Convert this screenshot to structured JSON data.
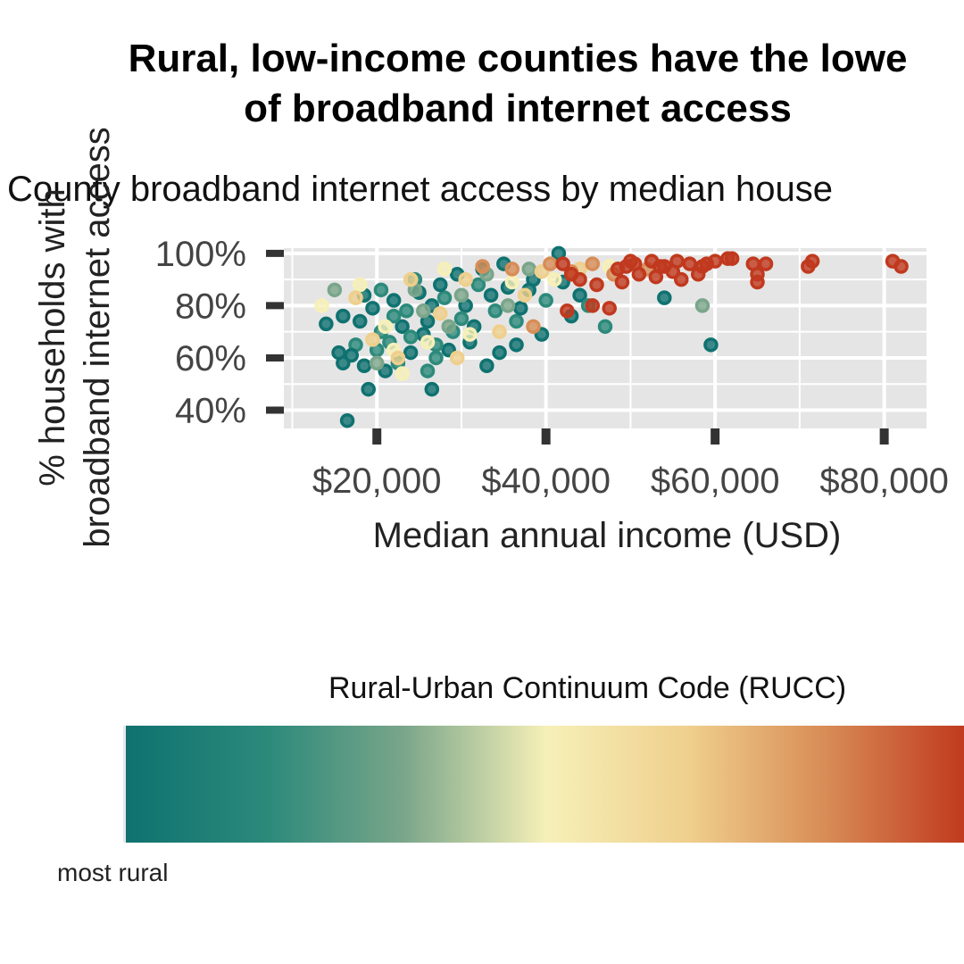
{
  "chart_data": {
    "type": "scatter",
    "title_line1": "Rural, low-income counties have the lowe",
    "title_line2": "of broadband internet access",
    "subtitle": "County broadband internet access by median house",
    "xlabel": "Median annual income (USD)",
    "ylabel_line1": "% households with",
    "ylabel_line2": "broadband internet access",
    "xlim": [
      9000,
      85000
    ],
    "ylim": [
      33,
      102
    ],
    "x_ticks": [
      20000,
      40000,
      60000,
      80000
    ],
    "x_tick_labels": [
      "$20,000",
      "$40,000",
      "$60,000",
      "$80,000"
    ],
    "y_ticks": [
      40,
      60,
      80,
      100
    ],
    "y_tick_labels": [
      "40%",
      "60%",
      "80%",
      "100%"
    ],
    "grid": true,
    "panel_background": "#e5e5e5",
    "grid_color": "#ffffff",
    "legend": {
      "title": "Rural-Urban Continuum Code (RUCC)",
      "low_label": "most rural",
      "placement": "bottom",
      "colors": [
        "#0f7270",
        "#2c8a7b",
        "#7aa58a",
        "#f6f0b8",
        "#efcf8c",
        "#d88d57",
        "#c0391e"
      ]
    },
    "series": [
      {
        "points": [
          [
            16500,
            36,
            1
          ],
          [
            19000,
            48,
            1
          ],
          [
            26500,
            48,
            1
          ],
          [
            16000,
            58,
            1
          ],
          [
            18500,
            57,
            1
          ],
          [
            15500,
            62,
            1
          ],
          [
            17500,
            65,
            2
          ],
          [
            21000,
            55,
            1
          ],
          [
            24000,
            62,
            1
          ],
          [
            27000,
            60,
            2
          ],
          [
            33000,
            57,
            1
          ],
          [
            34500,
            62,
            1
          ],
          [
            36500,
            65,
            1
          ],
          [
            31000,
            66,
            1
          ],
          [
            29000,
            70,
            2
          ],
          [
            26000,
            74,
            1
          ],
          [
            23000,
            72,
            1
          ],
          [
            20500,
            70,
            2
          ],
          [
            18000,
            74,
            1
          ],
          [
            16000,
            76,
            1
          ],
          [
            14000,
            73,
            1
          ],
          [
            22000,
            82,
            1
          ],
          [
            25000,
            85,
            1
          ],
          [
            28000,
            83,
            2
          ],
          [
            30500,
            80,
            1
          ],
          [
            33500,
            84,
            1
          ],
          [
            35500,
            87,
            1
          ],
          [
            38000,
            86,
            1
          ],
          [
            40000,
            82,
            2
          ],
          [
            42000,
            89,
            1
          ],
          [
            44000,
            84,
            1
          ],
          [
            27500,
            88,
            1
          ],
          [
            24500,
            90,
            2
          ],
          [
            29500,
            92,
            1
          ],
          [
            32500,
            94,
            1
          ],
          [
            35000,
            96,
            1
          ],
          [
            41500,
            100,
            1
          ],
          [
            38500,
            90,
            1
          ],
          [
            36500,
            74,
            2
          ],
          [
            39500,
            69,
            1
          ],
          [
            21500,
            66,
            2
          ],
          [
            19500,
            79,
            1
          ],
          [
            23500,
            78,
            2
          ],
          [
            25500,
            69,
            1
          ],
          [
            30000,
            75,
            2
          ],
          [
            37000,
            79,
            1
          ],
          [
            54000,
            83,
            1
          ],
          [
            59500,
            65,
            1
          ],
          [
            17000,
            61,
            1
          ],
          [
            20000,
            63,
            2
          ],
          [
            22500,
            58,
            2
          ],
          [
            26000,
            55,
            2
          ],
          [
            28500,
            63,
            1
          ],
          [
            31500,
            72,
            1
          ],
          [
            34000,
            78,
            2
          ],
          [
            47000,
            72,
            2
          ],
          [
            45000,
            80,
            2
          ],
          [
            43000,
            76,
            1
          ],
          [
            32000,
            88,
            2
          ],
          [
            26500,
            80,
            1
          ],
          [
            20500,
            86,
            2
          ],
          [
            18500,
            84,
            1
          ],
          [
            22000,
            76,
            2
          ],
          [
            24000,
            68,
            2
          ],
          [
            27000,
            65,
            2
          ],
          [
            58500,
            80,
            3
          ],
          [
            15000,
            86,
            3
          ],
          [
            20000,
            58,
            3
          ],
          [
            25500,
            78,
            3
          ],
          [
            30000,
            84,
            3
          ],
          [
            35500,
            80,
            3
          ],
          [
            28500,
            72,
            3
          ],
          [
            33000,
            92,
            3
          ],
          [
            38000,
            94,
            3
          ],
          [
            24500,
            86,
            3
          ],
          [
            13500,
            80,
            4
          ],
          [
            18000,
            88,
            4
          ],
          [
            22000,
            63,
            4
          ],
          [
            23000,
            54,
            4
          ],
          [
            21000,
            72,
            4
          ],
          [
            26000,
            66,
            4
          ],
          [
            36000,
            89,
            4
          ],
          [
            41000,
            90,
            4
          ],
          [
            28000,
            94,
            4
          ],
          [
            31000,
            69,
            4
          ],
          [
            47500,
            95,
            4
          ],
          [
            19500,
            67,
            5
          ],
          [
            24000,
            90,
            5
          ],
          [
            29500,
            60,
            5
          ],
          [
            34500,
            70,
            5
          ],
          [
            39500,
            93,
            5
          ],
          [
            27500,
            77,
            5
          ],
          [
            44000,
            94,
            5
          ],
          [
            37500,
            84,
            5
          ],
          [
            17500,
            83,
            5
          ],
          [
            30500,
            90,
            5
          ],
          [
            22500,
            60,
            5
          ],
          [
            40500,
            96,
            6
          ],
          [
            43000,
            93,
            6
          ],
          [
            45500,
            96,
            6
          ],
          [
            36000,
            94,
            6
          ],
          [
            48000,
            92,
            6
          ],
          [
            52000,
            94,
            6
          ],
          [
            32500,
            95,
            6
          ],
          [
            38500,
            72,
            6
          ],
          [
            46000,
            88,
            7
          ],
          [
            48500,
            94,
            7
          ],
          [
            50500,
            96,
            7
          ],
          [
            52500,
            97,
            7
          ],
          [
            54000,
            95,
            7
          ],
          [
            55500,
            97,
            7
          ],
          [
            57000,
            96,
            7
          ],
          [
            58500,
            95,
            7
          ],
          [
            60000,
            97,
            7
          ],
          [
            61500,
            98,
            7
          ],
          [
            64500,
            96,
            7
          ],
          [
            66000,
            96,
            7
          ],
          [
            65000,
            92,
            7
          ],
          [
            65000,
            89,
            7
          ],
          [
            71000,
            95,
            7
          ],
          [
            71500,
            97,
            7
          ],
          [
            81000,
            97,
            7
          ],
          [
            82000,
            95,
            7
          ],
          [
            53000,
            91,
            7
          ],
          [
            56000,
            90,
            7
          ],
          [
            49000,
            89,
            7
          ],
          [
            47500,
            79,
            7
          ],
          [
            44000,
            90,
            7
          ],
          [
            43000,
            92,
            7
          ],
          [
            42000,
            96,
            7
          ],
          [
            51000,
            92,
            7
          ],
          [
            55000,
            93,
            7
          ],
          [
            58000,
            92,
            7
          ],
          [
            45500,
            80,
            7
          ],
          [
            42500,
            78,
            7
          ],
          [
            49500,
            95,
            7
          ],
          [
            53500,
            95,
            7
          ],
          [
            59000,
            96,
            7
          ],
          [
            62000,
            98,
            7
          ],
          [
            50000,
            97,
            7
          ]
        ]
      }
    ]
  }
}
